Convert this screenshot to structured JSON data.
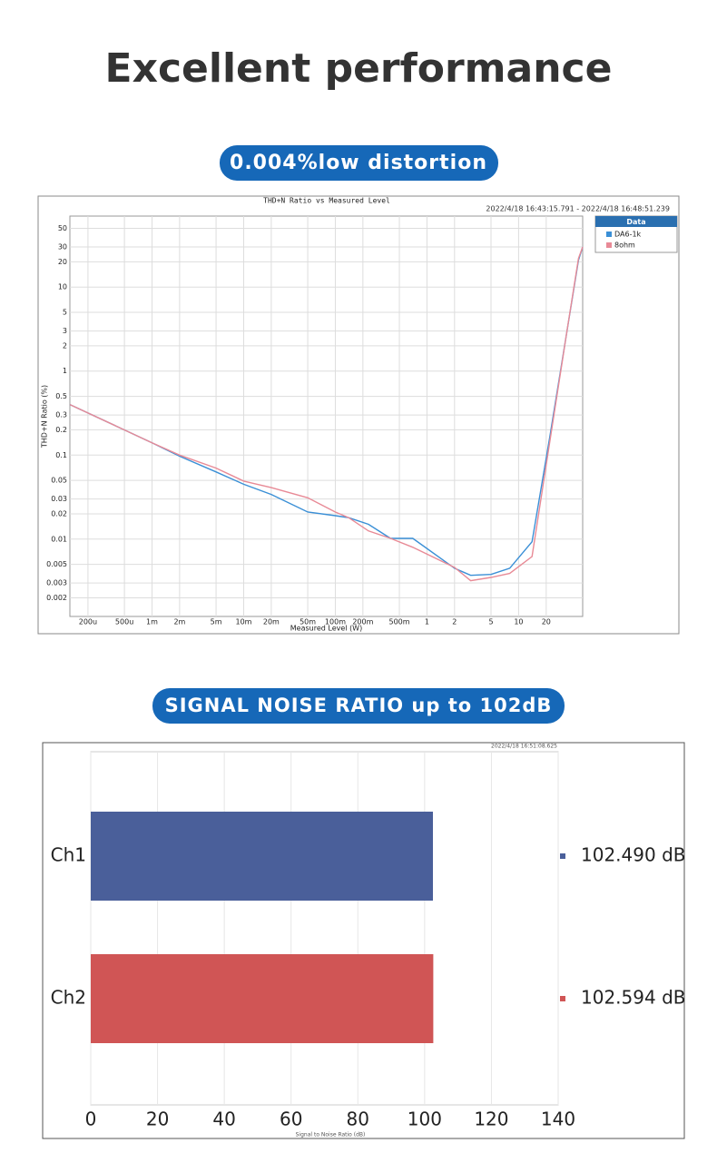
{
  "heading": "Excellent performance",
  "badges": [
    "0.004%low distortion",
    "SIGNAL NOISE RATIO up to 102dB"
  ],
  "chart_data": [
    {
      "type": "line",
      "title": "THD+N Ratio vs Measured Level",
      "subtitle": "2022/4/18 16:43:15.791 -   2022/4/18 16:48:51.239",
      "x_label": "Measured Level (W)",
      "y_label": "THD+N Ratio (%)",
      "log_x": true,
      "log_y": true,
      "grid": true,
      "legend_title": "Data",
      "legend_position": "right",
      "x": [
        0.000127,
        0.001,
        0.002,
        0.005,
        0.01,
        0.02,
        0.05,
        0.1,
        0.14,
        0.23,
        0.4,
        0.7,
        2,
        3,
        5,
        8,
        14,
        22,
        33,
        45,
        50
      ],
      "series": [
        {
          "name": "DA6-1k",
          "color": "#3a8fd6",
          "values": [
            0.4,
            0.14,
            0.097,
            0.063,
            0.045,
            0.034,
            0.021,
            0.019,
            0.018,
            0.015,
            0.0102,
            0.0102,
            0.0045,
            0.0037,
            0.0038,
            0.0045,
            0.0093,
            0.17,
            2.6,
            21,
            30
          ]
        },
        {
          "name": "8ohm",
          "color": "#e88a96",
          "values": [
            0.4,
            0.14,
            0.1,
            0.07,
            0.049,
            0.041,
            0.031,
            0.021,
            0.018,
            0.0125,
            0.0102,
            0.008,
            0.0046,
            0.0032,
            0.0035,
            0.0039,
            0.0062,
            0.15,
            2.6,
            22,
            30
          ]
        }
      ],
      "xlim": [
        0.000127,
        50
      ],
      "xticks": [
        {
          "value": 0.0002,
          "label": "200u"
        },
        {
          "value": 0.0005,
          "label": "500u"
        },
        {
          "value": 0.001,
          "label": "1m"
        },
        {
          "value": 0.002,
          "label": "2m"
        },
        {
          "value": 0.005,
          "label": "5m"
        },
        {
          "value": 0.01,
          "label": "10m"
        },
        {
          "value": 0.02,
          "label": "20m"
        },
        {
          "value": 0.05,
          "label": "50m"
        },
        {
          "value": 0.1,
          "label": "100m"
        },
        {
          "value": 0.2,
          "label": "200m"
        },
        {
          "value": 0.5,
          "label": "500m"
        },
        1,
        2,
        5,
        10,
        20
      ],
      "ylim": [
        0.0012,
        70
      ],
      "yticks": [
        50,
        30,
        20,
        10,
        5,
        3,
        2,
        1,
        0.5,
        0.3,
        0.2,
        0.1,
        0.05,
        0.03,
        0.02,
        0.01,
        0.005,
        0.003,
        0.002
      ]
    },
    {
      "type": "bar",
      "orientation": "horizontal",
      "subtitle": "2022/4/18 16:51:08.625",
      "x_label": "Signal to Noise Ratio (dB)",
      "grid": true,
      "categories": [
        "Ch1",
        "Ch2"
      ],
      "values": [
        102.49,
        102.594
      ],
      "value_labels": [
        "102.490 dB",
        "102.594 dB"
      ],
      "colors": [
        "#4a5f9a",
        "#d05555"
      ],
      "xlim": [
        0,
        140
      ],
      "xticks": [
        0,
        20,
        40,
        60,
        80,
        100,
        120,
        140
      ]
    }
  ]
}
